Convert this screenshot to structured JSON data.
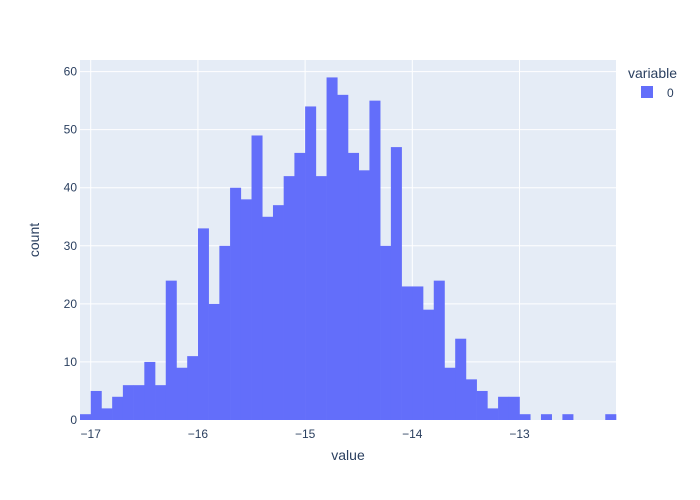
{
  "chart_data": {
    "type": "bar",
    "subtype": "histogram",
    "xlabel": "value",
    "ylabel": "count",
    "xlim": [
      -17.1,
      -12.1
    ],
    "ylim": [
      0,
      62
    ],
    "bin_start": -17.1,
    "bin_width": 0.1,
    "x_ticks": [
      -17,
      -16,
      -15,
      -14,
      -13
    ],
    "x_tick_labels": [
      "−17",
      "−16",
      "−15",
      "−14",
      "−13"
    ],
    "y_ticks": [
      0,
      10,
      20,
      30,
      40,
      50,
      60
    ],
    "y_tick_labels": [
      "0",
      "10",
      "20",
      "30",
      "40",
      "50",
      "60"
    ],
    "grid": true,
    "legend": {
      "title": "variable",
      "placement": "top-right"
    },
    "colors": {
      "bar": "#636efa",
      "plot_bg": "#e5ecf6",
      "grid": "#ffffff",
      "text": "#2a3f5f"
    },
    "series": [
      {
        "name": "0",
        "values": [
          1,
          5,
          2,
          4,
          6,
          6,
          10,
          6,
          24,
          9,
          11,
          33,
          20,
          30,
          40,
          38,
          49,
          35,
          37,
          42,
          46,
          54,
          42,
          59,
          56,
          46,
          43,
          55,
          30,
          47,
          23,
          23,
          19,
          24,
          9,
          14,
          7,
          5,
          2,
          4,
          4,
          1,
          0,
          1,
          0,
          1,
          0,
          0,
          0,
          1
        ]
      }
    ]
  }
}
